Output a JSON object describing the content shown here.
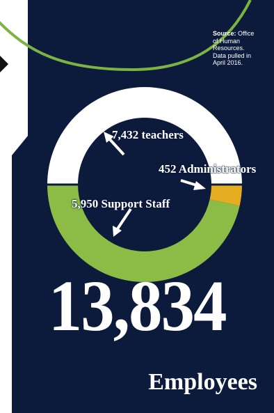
{
  "source": {
    "label": "Source:",
    "text": "Office of Human Resources. Data pulled in April 2016."
  },
  "total": {
    "value": "13,834",
    "unit": "Employees"
  },
  "colors": {
    "background": "#0c1a3c",
    "teachers": "#ffffff",
    "support_staff": "#8cbc45",
    "administrators": "#e4ad22",
    "decor_line": "#7cb342"
  },
  "chart_data": {
    "type": "pie",
    "chart": "donut",
    "categories": [
      "teachers",
      "Administrators",
      "Support Staff"
    ],
    "values": [
      7432,
      452,
      5950
    ],
    "labels": [
      "7,432 teachers",
      "452 Administrators",
      "5,950 Support Staff"
    ],
    "total": 13834
  }
}
